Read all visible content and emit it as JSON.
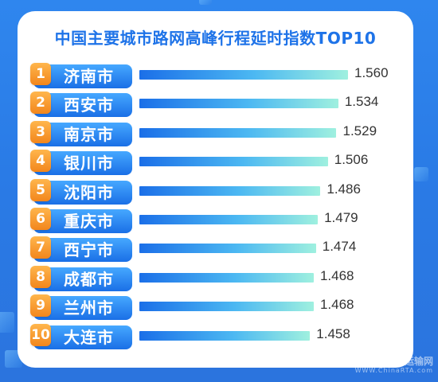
{
  "chart_data": {
    "type": "bar",
    "orientation": "horizontal",
    "title": "中国主要城市路网高峰行程延时指数TOP10",
    "ranks": [
      "1",
      "2",
      "3",
      "4",
      "5",
      "6",
      "7",
      "8",
      "9",
      "10"
    ],
    "categories": [
      "济南市",
      "西安市",
      "南京市",
      "银川市",
      "沈阳市",
      "重庆市",
      "西宁市",
      "成都市",
      "兰州市",
      "大连市"
    ],
    "values": [
      1.56,
      1.534,
      1.529,
      1.506,
      1.486,
      1.479,
      1.474,
      1.468,
      1.468,
      1.458
    ],
    "value_labels": [
      "1.560",
      "1.534",
      "1.529",
      "1.506",
      "1.486",
      "1.479",
      "1.474",
      "1.468",
      "1.468",
      "1.458"
    ],
    "xlim": [
      1.0,
      1.56
    ],
    "colors": {
      "badge": "#f2861c",
      "label": "#1a6fe6",
      "bar_start": "#1b6fe8",
      "bar_end": "#9ff0df",
      "title": "#1e73e8"
    }
  },
  "watermark": {
    "line1": "中国道路运输网",
    "line2": "WWW.ChinaRTA.com"
  }
}
